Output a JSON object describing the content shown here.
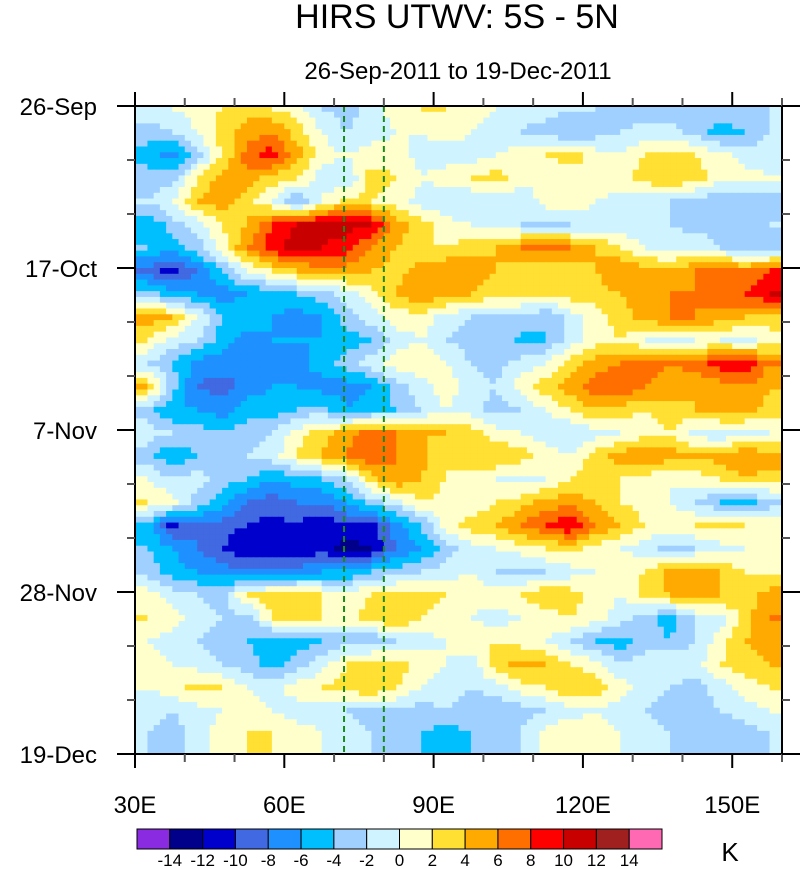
{
  "chart_data": {
    "type": "heatmap",
    "title": "HIRS UTWV: 5S - 5N",
    "subtitle": "26-Sep-2011 to 19-Dec-2011",
    "xlabel": "",
    "ylabel": "",
    "units": "K",
    "x_range": [
      30,
      160
    ],
    "x_ticks": [
      30,
      60,
      90,
      120,
      150
    ],
    "x_tick_labels": [
      "30E",
      "60E",
      "90E",
      "120E",
      "150E"
    ],
    "x_minor_step": 10,
    "y_range_days": [
      0,
      84
    ],
    "y_ticks_days": [
      0,
      21,
      42,
      63,
      84
    ],
    "y_tick_labels": [
      "26-Sep",
      "17-Oct",
      "7-Nov",
      "28-Nov",
      "19-Dec"
    ],
    "y_minor_step_days": 7,
    "y_direction": "top-to-bottom",
    "reference_lines": [
      {
        "lon": 72,
        "style": "dashed",
        "color": "#1a8a1a"
      },
      {
        "lon": 80,
        "style": "dashed",
        "color": "#1a8a1a"
      }
    ],
    "colorbar": {
      "levels": [
        -14,
        -12,
        -10,
        -8,
        -6,
        -4,
        -2,
        0,
        2,
        4,
        6,
        8,
        10,
        12,
        14
      ],
      "colors": [
        "#8a2be2",
        "#00008b",
        "#0000cd",
        "#4169e1",
        "#1e90ff",
        "#00bfff",
        "#a0d0ff",
        "#d0f4ff",
        "#ffffcc",
        "#ffe033",
        "#ffaa00",
        "#ff6f00",
        "#ff0000",
        "#c80000",
        "#a02020",
        "#ff69b4"
      ],
      "placement": "bottom"
    },
    "grid_lon_centers": [
      32.5,
      37.5,
      42.5,
      47.5,
      52.5,
      57.5,
      62.5,
      67.5,
      72.5,
      77.5,
      82.5,
      87.5,
      92.5,
      97.5,
      102.5,
      107.5,
      112.5,
      117.5,
      122.5,
      127.5,
      132.5,
      137.5,
      142.5,
      147.5,
      152.5,
      157.5
    ],
    "grid_day_step": 3,
    "values": [
      [
        -1,
        0,
        1,
        2,
        3,
        2,
        1,
        -2,
        -3,
        -1,
        1,
        2,
        2,
        1,
        0,
        -1,
        -1,
        -2,
        -2,
        -3,
        -4,
        -4,
        -3,
        -2,
        -3,
        -2
      ],
      [
        -3,
        -2,
        0,
        3,
        5,
        6,
        3,
        0,
        -2,
        -1,
        0,
        0,
        1,
        0,
        -1,
        -2,
        -3,
        -4,
        -3,
        -2,
        -1,
        -1,
        -3,
        -5,
        -4,
        -2
      ],
      [
        -5,
        -7,
        -3,
        2,
        7,
        9,
        5,
        1,
        0,
        1,
        1,
        -1,
        -1,
        -1,
        0,
        1,
        2,
        3,
        1,
        0,
        2,
        3,
        2,
        1,
        -1,
        -1
      ],
      [
        -3,
        -3,
        2,
        5,
        5,
        3,
        2,
        -1,
        -2,
        3,
        2,
        0,
        1,
        2,
        3,
        1,
        0,
        1,
        2,
        1,
        3,
        4,
        3,
        1,
        1,
        0
      ],
      [
        -2,
        0,
        4,
        5,
        3,
        0,
        -4,
        0,
        3,
        2,
        1,
        -1,
        -2,
        -2,
        -1,
        -2,
        1,
        2,
        0,
        -1,
        -2,
        -2,
        -3,
        -4,
        -4,
        -4
      ],
      [
        -6,
        -3,
        -1,
        2,
        4,
        8,
        10,
        11,
        11,
        10,
        5,
        3,
        1,
        0,
        -1,
        -2,
        -3,
        -2,
        -2,
        -1,
        -2,
        -2,
        -3,
        -3,
        -4,
        -2
      ],
      [
        -4,
        -5,
        -3,
        1,
        6,
        9,
        11,
        10,
        9,
        6,
        4,
        2,
        2,
        3,
        4,
        6,
        7,
        6,
        4,
        2,
        0,
        -1,
        0,
        -2,
        -3,
        -4
      ],
      [
        -9,
        -11,
        -8,
        -4,
        0,
        2,
        4,
        5,
        5,
        4,
        3,
        5,
        6,
        5,
        4,
        3,
        2,
        3,
        4,
        6,
        5,
        4,
        6,
        7,
        6,
        8
      ],
      [
        -3,
        -5,
        -6,
        -7,
        -6,
        -5,
        -4,
        -3,
        -1,
        1,
        4,
        6,
        5,
        4,
        3,
        2,
        2,
        3,
        3,
        4,
        5,
        6,
        6,
        7,
        8,
        10
      ],
      [
        5,
        4,
        0,
        -4,
        -5,
        -6,
        -7,
        -6,
        -3,
        -1,
        1,
        1,
        -1,
        -2,
        -3,
        -2,
        -4,
        -1,
        1,
        3,
        5,
        6,
        6,
        5,
        4,
        3
      ],
      [
        2,
        -1,
        -2,
        -5,
        -7,
        -6,
        -6,
        -6,
        -5,
        -4,
        -1,
        0,
        -2,
        -3,
        -2,
        -5,
        -4,
        -1,
        1,
        2,
        0,
        -1,
        0,
        0,
        -1,
        1
      ],
      [
        -2,
        -4,
        -7,
        -7,
        -8,
        -8,
        -7,
        -5,
        -3,
        -1,
        1,
        2,
        0,
        -2,
        -3,
        -1,
        0,
        3,
        5,
        6,
        7,
        6,
        7,
        9,
        10,
        6
      ],
      [
        4,
        -3,
        -8,
        -9,
        -7,
        -6,
        -6,
        -7,
        -7,
        -6,
        -3,
        -1,
        1,
        -1,
        -2,
        1,
        3,
        5,
        7,
        8,
        6,
        5,
        4,
        5,
        6,
        4
      ],
      [
        -3,
        -6,
        -6,
        -7,
        -5,
        -5,
        -4,
        -3,
        -6,
        -5,
        -4,
        -2,
        0,
        -1,
        -3,
        -2,
        0,
        2,
        4,
        3,
        2,
        3,
        4,
        6,
        5,
        3
      ],
      [
        -1,
        -2,
        -3,
        -4,
        -3,
        -2,
        1,
        3,
        5,
        7,
        6,
        4,
        4,
        3,
        1,
        0,
        -1,
        -2,
        -1,
        0,
        1,
        2,
        -1,
        -2,
        -1,
        0
      ],
      [
        -3,
        -6,
        -4,
        -4,
        -2,
        -1,
        2,
        4,
        6,
        8,
        6,
        5,
        2,
        3,
        4,
        3,
        1,
        0,
        3,
        5,
        6,
        5,
        4,
        5,
        6,
        5
      ],
      [
        0,
        -2,
        -1,
        -3,
        -4,
        -6,
        -5,
        -4,
        -2,
        3,
        6,
        4,
        2,
        1,
        0,
        -1,
        0,
        2,
        3,
        2,
        1,
        0,
        1,
        2,
        4,
        3
      ],
      [
        2,
        1,
        -3,
        -5,
        -8,
        -9,
        -8,
        -8,
        -6,
        -3,
        -1,
        2,
        1,
        0,
        2,
        3,
        5,
        5,
        4,
        2,
        1,
        0,
        -2,
        -4,
        -5,
        -3
      ],
      [
        -5,
        -11,
        -8,
        -9,
        -10,
        -11,
        -10,
        -12,
        -10,
        -11,
        -7,
        -4,
        1,
        3,
        4,
        6,
        8,
        10,
        6,
        4,
        2,
        1,
        2,
        3,
        2,
        1
      ],
      [
        -4,
        -6,
        -8,
        -10,
        -12,
        -12,
        -12,
        -11,
        -13,
        -12,
        -8,
        -6,
        -3,
        -1,
        0,
        1,
        2,
        3,
        1,
        0,
        -1,
        -3,
        -2,
        -1,
        0,
        1
      ],
      [
        -3,
        -5,
        -6,
        -7,
        -8,
        -8,
        -7,
        -6,
        -6,
        -4,
        -3,
        -2,
        -1,
        0,
        -2,
        -3,
        -2,
        -1,
        0,
        1,
        2,
        5,
        6,
        4,
        2,
        1
      ],
      [
        1,
        -1,
        -2,
        -3,
        2,
        3,
        3,
        2,
        1,
        2,
        3,
        3,
        2,
        1,
        1,
        2,
        4,
        3,
        1,
        0,
        3,
        4,
        6,
        4,
        3,
        5
      ],
      [
        2,
        1,
        -1,
        -2,
        -3,
        2,
        3,
        2,
        1,
        3,
        4,
        2,
        1,
        0,
        -1,
        0,
        1,
        2,
        1,
        -1,
        -3,
        -5,
        -2,
        -1,
        3,
        6
      ],
      [
        0,
        -1,
        -2,
        -3,
        -4,
        -6,
        -5,
        -4,
        -3,
        -4,
        -2,
        -1,
        0,
        1,
        2,
        1,
        0,
        -2,
        -4,
        -5,
        -3,
        -4,
        -2,
        1,
        4,
        5
      ],
      [
        1,
        0,
        -1,
        -2,
        -3,
        -5,
        -3,
        -1,
        2,
        4,
        3,
        1,
        0,
        -1,
        3,
        5,
        4,
        2,
        1,
        -2,
        -1,
        0,
        -1,
        2,
        3,
        4
      ],
      [
        0,
        1,
        3,
        2,
        0,
        -1,
        1,
        2,
        3,
        4,
        2,
        0,
        -1,
        -2,
        -1,
        1,
        2,
        4,
        3,
        1,
        -1,
        -2,
        -3,
        -1,
        1,
        2
      ],
      [
        -1,
        -2,
        -1,
        0,
        1,
        0,
        -1,
        -1,
        -2,
        -3,
        -2,
        -3,
        -2,
        -3,
        -4,
        -3,
        -2,
        -1,
        0,
        -1,
        -2,
        -3,
        -4,
        -2,
        -1,
        0
      ],
      [
        -2,
        -3,
        -1,
        1,
        2,
        2,
        1,
        0,
        -1,
        -2,
        -3,
        -4,
        -5,
        -4,
        -3,
        -2,
        1,
        2,
        1,
        0,
        -1,
        -2,
        -3,
        -4,
        -3,
        -2
      ]
    ]
  }
}
